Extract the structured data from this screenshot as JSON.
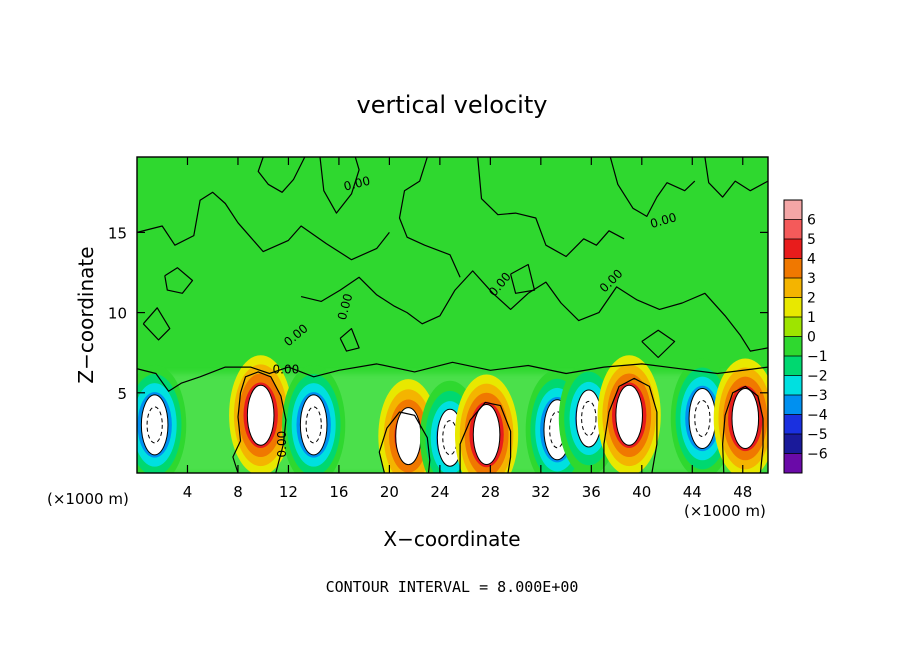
{
  "chart_data": {
    "type": "heatmap",
    "title": "vertical velocity",
    "xlabel": "X−coordinate",
    "ylabel": "Z−coordinate",
    "x_unit_label": "(×1000 m)",
    "x_unit_label_right": "(×1000 m)",
    "xlim": [
      0,
      50
    ],
    "ylim": [
      0,
      19.7
    ],
    "x_ticks": [
      4,
      8,
      12,
      16,
      20,
      24,
      28,
      32,
      36,
      40,
      44,
      48
    ],
    "y_ticks": [
      5,
      10,
      15
    ],
    "x_tick_labels": [
      "4",
      "8",
      "12",
      "16",
      "20",
      "24",
      "28",
      "32",
      "36",
      "40",
      "44",
      "48"
    ],
    "y_tick_labels": [
      "5",
      "10",
      "15"
    ],
    "colorbar": {
      "levels": [
        6,
        5,
        4,
        3,
        2,
        1,
        0,
        -1,
        -2,
        -3,
        -4,
        -5,
        -6
      ],
      "labels": [
        "6",
        "5",
        "4",
        "3",
        "2",
        "1",
        "0",
        "−1",
        "−2",
        "−3",
        "−4",
        "−5",
        "−6"
      ],
      "colors": [
        "#f4a6a6",
        "#f45a5a",
        "#e81c1c",
        "#f07800",
        "#f4b400",
        "#e8e800",
        "#9ee400",
        "#2fd82f",
        "#00d870",
        "#00e0e0",
        "#0090f0",
        "#1a30e0",
        "#1a1a9a",
        "#6a0aa8"
      ]
    },
    "background_value": 0,
    "contour_labels": [
      "0.00",
      "0.00",
      "0.00",
      "0.00",
      "0.00",
      "0.00",
      "0.00",
      "0.00"
    ],
    "contour_interval_text": "CONTOUR INTERVAL = 8.000E+00",
    "cells": [
      {
        "x": 1.4,
        "z": 3.0,
        "w": -6
      },
      {
        "x": 9.8,
        "z": 3.6,
        "w": 6
      },
      {
        "x": 14.0,
        "z": 3.0,
        "w": -6
      },
      {
        "x": 21.5,
        "z": 2.3,
        "w": 5
      },
      {
        "x": 24.8,
        "z": 2.2,
        "w": -5
      },
      {
        "x": 27.7,
        "z": 2.4,
        "w": 6
      },
      {
        "x": 33.3,
        "z": 2.7,
        "w": -6
      },
      {
        "x": 35.8,
        "z": 3.4,
        "w": -5
      },
      {
        "x": 39.0,
        "z": 3.6,
        "w": 6
      },
      {
        "x": 44.8,
        "z": 3.4,
        "w": -6
      },
      {
        "x": 48.2,
        "z": 3.4,
        "w": 6
      }
    ]
  }
}
